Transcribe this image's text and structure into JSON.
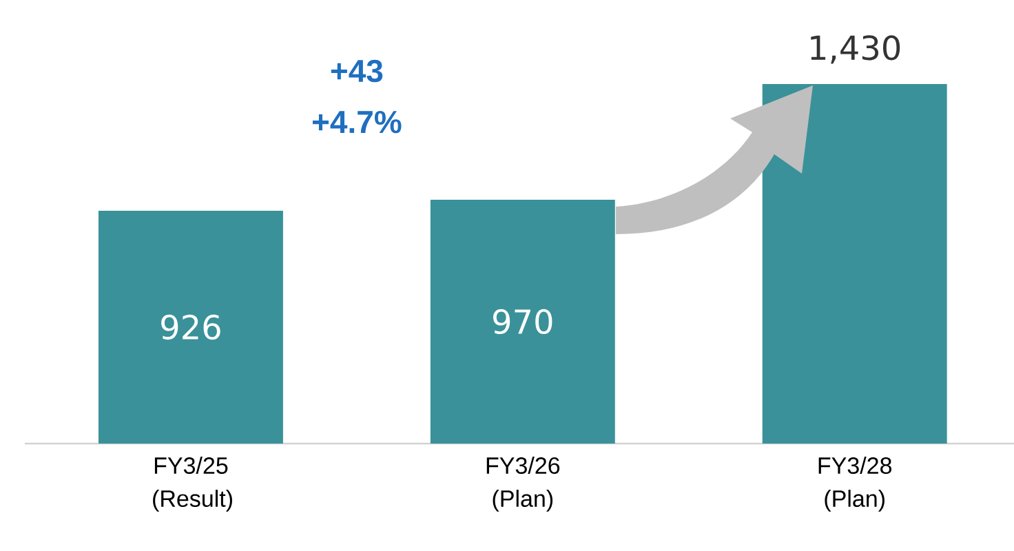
{
  "chart_data": {
    "type": "bar",
    "categories": [
      "FY3/25 (Result)",
      "FY3/26 (Plan)",
      "FY3/28 (Plan)"
    ],
    "values": [
      926,
      970,
      1430
    ],
    "value_labels": [
      "926",
      "970",
      "1,430"
    ],
    "color": "#3a9199",
    "tick_labels": "x",
    "annotations": [
      "+43",
      "+4.7%"
    ]
  }
}
